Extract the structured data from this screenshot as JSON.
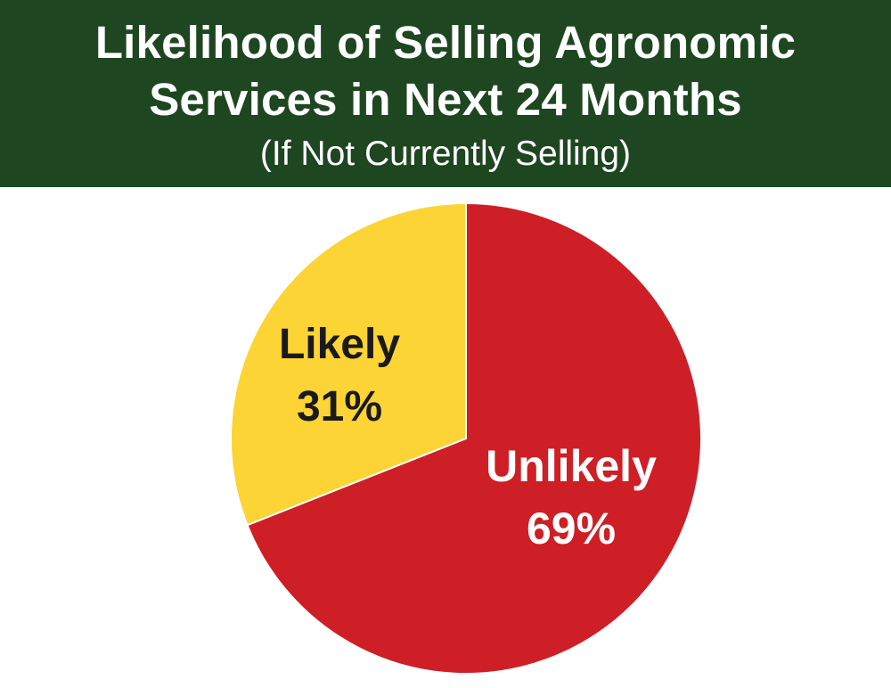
{
  "header": {
    "title_line1": "Likelihood of Selling Agronomic",
    "title_line2": "Services in Next 24 Months",
    "subtitle": "(If Not Currently Selling)",
    "background_color": "#1e4620"
  },
  "chart_data": {
    "type": "pie",
    "title": "Likelihood of Selling Agronomic Services in Next 24 Months",
    "subtitle": "(If Not Currently Selling)",
    "slices": [
      {
        "label": "Unlikely",
        "value": 69,
        "display": "69%",
        "color": "#cd1f25",
        "text_color": "#ffffff"
      },
      {
        "label": "Likely",
        "value": 31,
        "display": "31%",
        "color": "#fdd435",
        "text_color": "#1a1a1a"
      }
    ],
    "start_position": "12 o'clock",
    "direction": "clockwise",
    "legend": "none"
  }
}
